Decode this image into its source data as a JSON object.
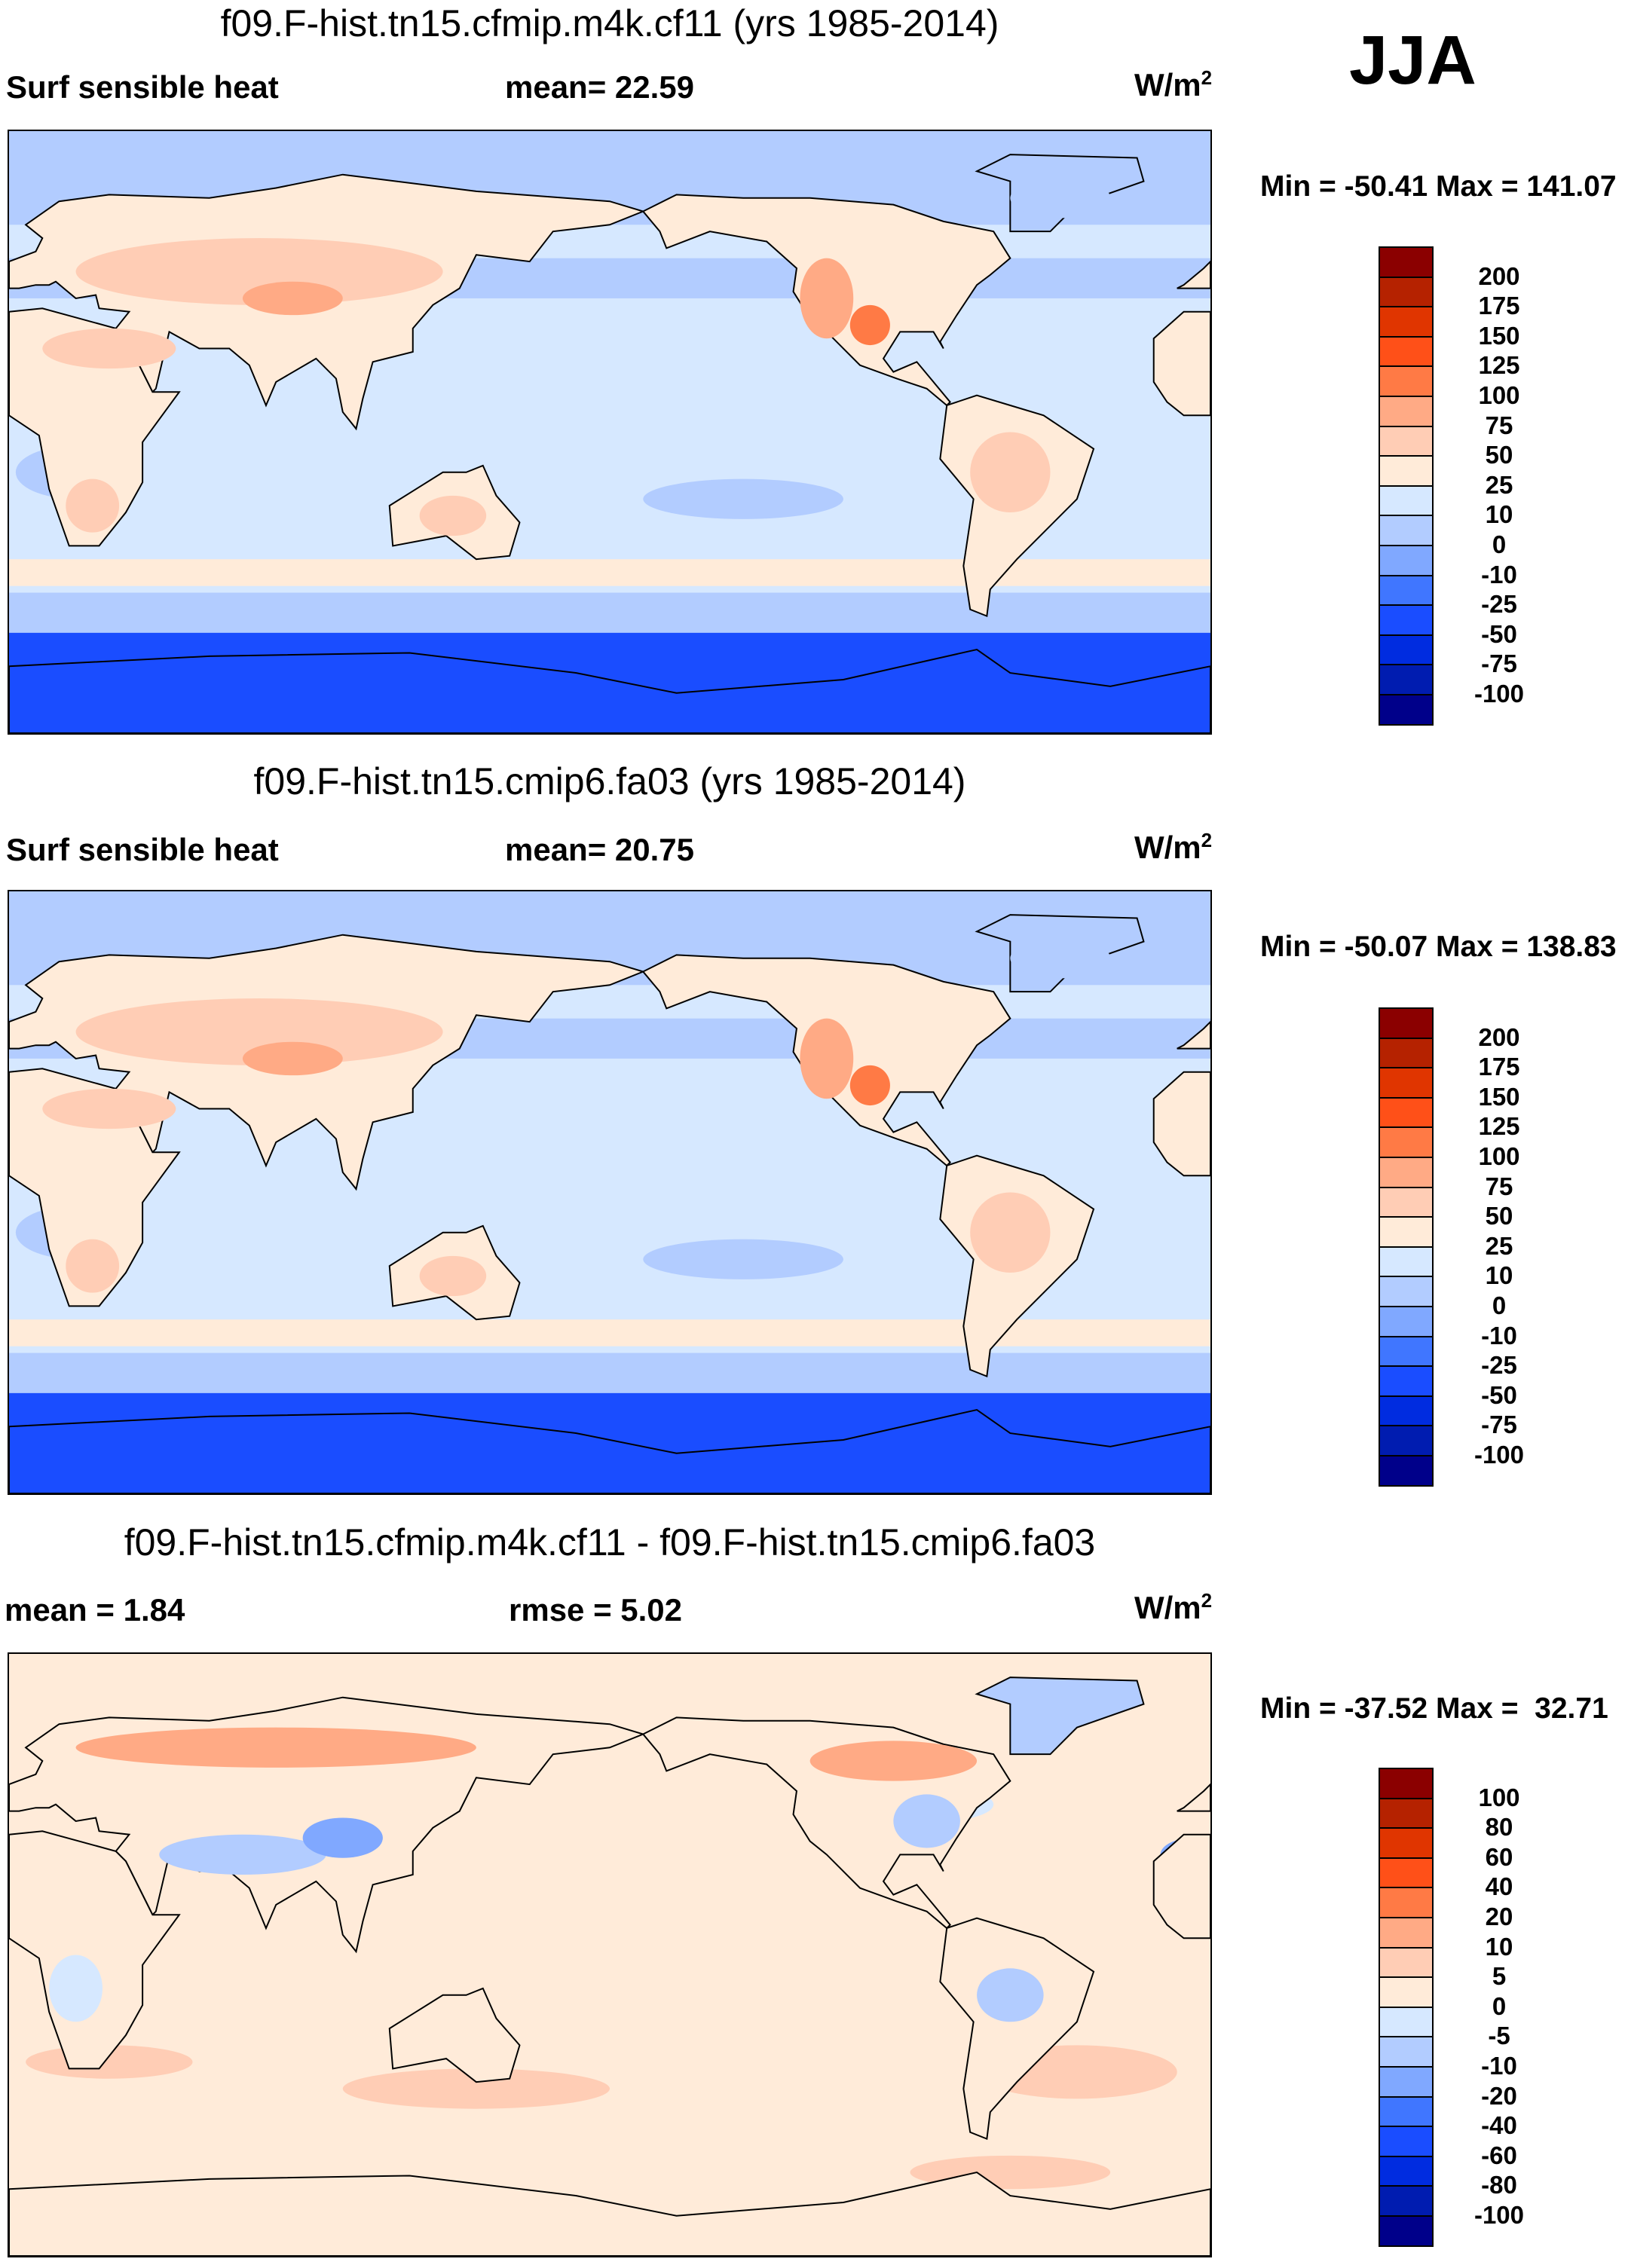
{
  "season": "JJA",
  "chart_data": [
    {
      "type": "heatmap",
      "title": "f09.F-hist.tn15.cfmip.m4k.cf11 (yrs 1985-2014)",
      "left_label": "Surf sensible heat",
      "center_label": "mean=  22.59",
      "units": "W/m",
      "units_sup": "2",
      "minmax": "Min = -50.41 Max = 141.07",
      "levels": [
        "200",
        "175",
        "150",
        "125",
        "100",
        "75",
        "50",
        "25",
        "10",
        "0",
        "-10",
        "-25",
        "-50",
        "-75",
        "-100"
      ],
      "colors": [
        "#8b0000",
        "#b52200",
        "#e03500",
        "#ff5018",
        "#ff7a45",
        "#ffaa85",
        "#ffcdb5",
        "#ffebd9",
        "#d6e8ff",
        "#b2ccff",
        "#80a8ff",
        "#4076ff",
        "#1a4dff",
        "#002ce0",
        "#001cb0",
        "#00008a"
      ]
    },
    {
      "type": "heatmap",
      "title": "f09.F-hist.tn15.cmip6.fa03 (yrs 1985-2014)",
      "left_label": "Surf sensible heat",
      "center_label": "mean=  20.75",
      "units": "W/m",
      "units_sup": "2",
      "minmax": "Min = -50.07 Max = 138.83",
      "levels": [
        "200",
        "175",
        "150",
        "125",
        "100",
        "75",
        "50",
        "25",
        "10",
        "0",
        "-10",
        "-25",
        "-50",
        "-75",
        "-100"
      ],
      "colors": [
        "#8b0000",
        "#b52200",
        "#e03500",
        "#ff5018",
        "#ff7a45",
        "#ffaa85",
        "#ffcdb5",
        "#ffebd9",
        "#d6e8ff",
        "#b2ccff",
        "#80a8ff",
        "#4076ff",
        "#1a4dff",
        "#002ce0",
        "#001cb0",
        "#00008a"
      ]
    },
    {
      "type": "heatmap",
      "title": "f09.F-hist.tn15.cfmip.m4k.cf11 - f09.F-hist.tn15.cmip6.fa03",
      "left_label": "mean =   1.84",
      "center_label": "rmse =   5.02",
      "units": "W/m",
      "units_sup": "2",
      "minmax": "Min = -37.52 Max =  32.71",
      "levels": [
        "100",
        "80",
        "60",
        "40",
        "20",
        "10",
        "5",
        "0",
        "-5",
        "-10",
        "-20",
        "-40",
        "-60",
        "-80",
        "-100"
      ],
      "colors": [
        "#8b0000",
        "#b52200",
        "#e03500",
        "#ff5018",
        "#ff7a45",
        "#ffaa85",
        "#ffcdb5",
        "#ffebd9",
        "#d6e8ff",
        "#b2ccff",
        "#80a8ff",
        "#4076ff",
        "#1a4dff",
        "#002ce0",
        "#001cb0",
        "#00008a"
      ]
    }
  ]
}
